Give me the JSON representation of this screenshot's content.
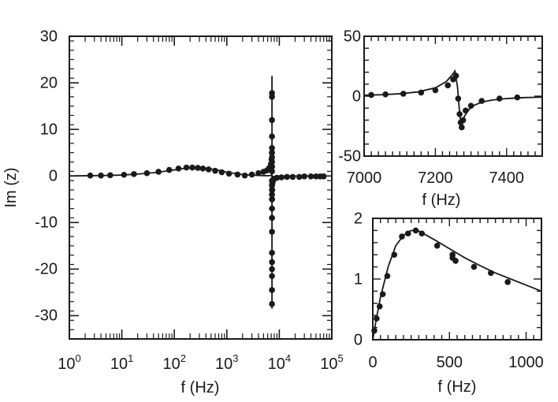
{
  "chart_data": [
    {
      "id": "main",
      "type": "scatter",
      "title": "",
      "xlabel": "f (Hz)",
      "ylabel": "Im (z)",
      "xscale": "log",
      "xlim": [
        1,
        100000
      ],
      "ylim": [
        -35,
        30
      ],
      "grid": false,
      "legend": "none",
      "xticks": [
        {
          "value": 1,
          "base": "10",
          "exp": "0"
        },
        {
          "value": 10,
          "base": "10",
          "exp": "1"
        },
        {
          "value": 100,
          "base": "10",
          "exp": "2"
        },
        {
          "value": 1000,
          "base": "10",
          "exp": "3"
        },
        {
          "value": 10000,
          "base": "10",
          "exp": "4"
        },
        {
          "value": 100000,
          "base": "10",
          "exp": "5"
        }
      ],
      "yticks": [
        {
          "value": 30,
          "label": "30"
        },
        {
          "value": 20,
          "label": "20"
        },
        {
          "value": 10,
          "label": "10"
        },
        {
          "value": 0,
          "label": "0"
        },
        {
          "value": -10,
          "label": "-10"
        },
        {
          "value": -20,
          "label": "-20"
        },
        {
          "value": -30,
          "label": "-30"
        }
      ],
      "series": [
        {
          "kind": "points",
          "x": [
            2.5,
            4,
            6,
            11,
            17,
            30,
            50,
            80,
            120,
            170,
            220,
            280,
            350,
            450,
            600,
            800,
            1100,
            1600,
            2200,
            3000,
            4000,
            5000,
            5800,
            6400,
            6900,
            7100,
            7200,
            7240,
            7260,
            7280,
            7320,
            7400,
            7600,
            8000,
            9000,
            11000,
            14000,
            18000,
            24000,
            30000,
            40000,
            50000,
            60000,
            70000
          ],
          "y": [
            0.1,
            0.1,
            0.15,
            0.25,
            0.4,
            0.6,
            0.9,
            1.3,
            1.6,
            1.8,
            1.8,
            1.75,
            1.6,
            1.4,
            1.1,
            0.8,
            0.5,
            0.3,
            0.1,
            0.3,
            0.6,
            0.9,
            1.2,
            1.7,
            2.5,
            3.5,
            5,
            2,
            -2,
            -5,
            -3,
            -1.5,
            -1,
            -0.6,
            -0.4,
            -0.3,
            -0.2,
            -0.2,
            -0.2,
            -0.1,
            -0.1,
            -0.1,
            -0.1,
            -0.1
          ]
        },
        {
          "kind": "points",
          "x": [
            7250,
            7250,
            7250,
            7250,
            7250,
            7250,
            7250,
            7250,
            7250,
            7250,
            7250,
            7250,
            7250,
            7250,
            7250,
            7250,
            7250,
            7250,
            7250,
            7250,
            7250,
            7250,
            7250,
            7250
          ],
          "y": [
            17.8,
            17,
            12,
            8.5,
            6,
            5,
            4,
            3,
            2,
            1,
            -1,
            -2,
            -3,
            -4,
            -5,
            -7,
            -9,
            -12,
            -16.5,
            -18.5,
            -20,
            -21.5,
            -24.5,
            -27.5
          ]
        },
        {
          "kind": "line",
          "x": [
            1,
            2,
            5,
            10,
            20,
            50,
            100,
            150,
            200,
            300,
            450,
            700,
            1000,
            2000,
            4000,
            6000,
            7000,
            7200,
            7300,
            8000,
            10000,
            20000,
            50000,
            70000
          ],
          "y": [
            0,
            0.05,
            0.1,
            0.2,
            0.4,
            0.8,
            1.3,
            1.6,
            1.75,
            1.8,
            1.6,
            1.2,
            0.8,
            0.3,
            0.1,
            0.05,
            0.1,
            0.3,
            -0.2,
            -0.1,
            0,
            0,
            0,
            0
          ]
        },
        {
          "kind": "line",
          "x": [
            7250,
            7250
          ],
          "y": [
            21.5,
            -28.5
          ]
        }
      ]
    },
    {
      "id": "inset-top",
      "type": "scatter",
      "title": "",
      "xlabel": "f (Hz)",
      "ylabel": "",
      "xscale": "linear",
      "xlim": [
        7000,
        7500
      ],
      "ylim": [
        -50,
        50
      ],
      "grid": false,
      "legend": "none",
      "xticks": [
        {
          "value": 7000,
          "label": "7000"
        },
        {
          "value": 7200,
          "label": "7200"
        },
        {
          "value": 7400,
          "label": "7400"
        }
      ],
      "yticks": [
        {
          "value": 50,
          "label": "50"
        },
        {
          "value": 0,
          "label": "0"
        },
        {
          "value": -50,
          "label": "-50"
        }
      ],
      "series": [
        {
          "kind": "points",
          "x": [
            7020,
            7060,
            7110,
            7160,
            7200,
            7235,
            7250,
            7258,
            7264,
            7268,
            7271,
            7274,
            7278,
            7285,
            7300,
            7330,
            7380,
            7430
          ],
          "y": [
            1,
            1.5,
            2,
            3,
            5,
            9,
            14,
            17,
            -2,
            -15,
            -22,
            -26,
            -20,
            -12,
            -8,
            -4,
            -2,
            -1
          ]
        },
        {
          "kind": "line",
          "x": [
            7000,
            7050,
            7100,
            7150,
            7200,
            7230,
            7245,
            7255,
            7262,
            7267,
            7272,
            7277,
            7283,
            7295,
            7310,
            7330,
            7360,
            7400,
            7450,
            7500
          ],
          "y": [
            0.8,
            1.2,
            2,
            3.5,
            7,
            12,
            17,
            21,
            8,
            -10,
            -24,
            -20,
            -16,
            -11,
            -7.5,
            -5,
            -3.2,
            -2,
            -1.2,
            -0.8
          ]
        }
      ]
    },
    {
      "id": "inset-bottom",
      "type": "scatter",
      "title": "",
      "xlabel": "f (Hz)",
      "ylabel": "",
      "xscale": "linear",
      "xlim": [
        0,
        1100
      ],
      "ylim": [
        0,
        2
      ],
      "grid": false,
      "legend": "none",
      "xticks": [
        {
          "value": 0,
          "label": "0"
        },
        {
          "value": 500,
          "label": "500"
        },
        {
          "value": 1000,
          "label": "1000"
        }
      ],
      "yticks": [
        {
          "value": 2,
          "label": "2"
        },
        {
          "value": 1,
          "label": "1"
        },
        {
          "value": 0,
          "label": "0"
        }
      ],
      "series": [
        {
          "kind": "points",
          "x": [
            10,
            25,
            45,
            65,
            95,
            140,
            190,
            230,
            280,
            320,
            420,
            520,
            520,
            540,
            660,
            770,
            880
          ],
          "y": [
            0.15,
            0.35,
            0.55,
            0.75,
            1.05,
            1.4,
            1.7,
            1.75,
            1.8,
            1.75,
            1.55,
            1.4,
            1.35,
            1.3,
            1.2,
            1.1,
            0.95
          ]
        },
        {
          "kind": "line",
          "x": [
            0,
            20,
            50,
            100,
            150,
            200,
            250,
            300,
            400,
            500,
            600,
            700,
            800,
            900,
            1000,
            1100
          ],
          "y": [
            0,
            0.3,
            0.7,
            1.2,
            1.55,
            1.72,
            1.8,
            1.79,
            1.65,
            1.5,
            1.35,
            1.22,
            1.1,
            1.0,
            0.9,
            0.8
          ]
        }
      ]
    }
  ]
}
